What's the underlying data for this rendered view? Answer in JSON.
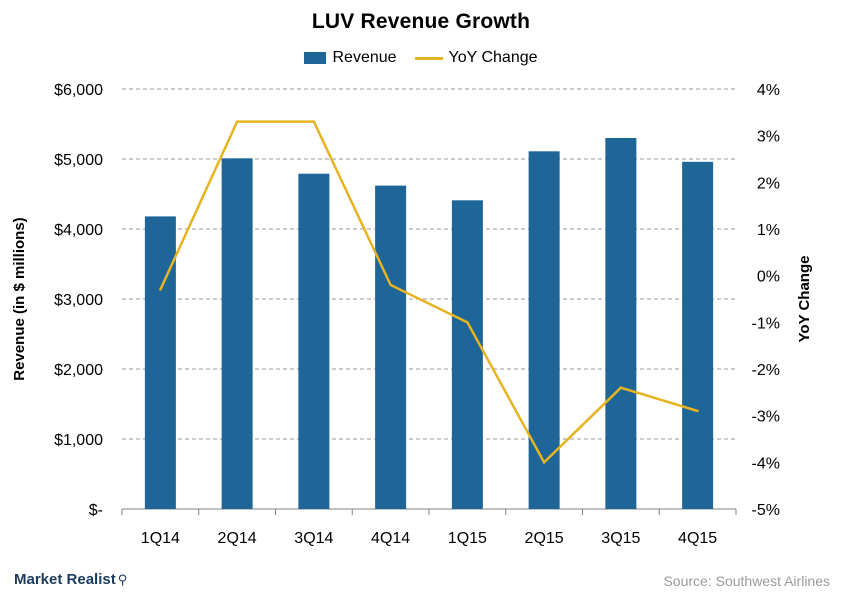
{
  "chart_data": {
    "type": "bar",
    "title": "LUV Revenue Growth",
    "categories": [
      "1Q14",
      "2Q14",
      "3Q14",
      "4Q14",
      "1Q15",
      "2Q15",
      "3Q15",
      "4Q15"
    ],
    "series": [
      {
        "name": "Revenue",
        "type": "bar",
        "axis": "left",
        "color": "#1f6698",
        "values": [
          4180,
          5010,
          4790,
          4620,
          4410,
          5110,
          5300,
          4960
        ]
      },
      {
        "name": "YoY Change",
        "type": "line",
        "axis": "right",
        "color": "#e6b321",
        "values": [
          -0.3,
          3.3,
          3.3,
          -0.2,
          -1.0,
          -4.0,
          -2.4,
          -2.9
        ]
      }
    ],
    "ylabel": "Revenue (in $ millions)",
    "y2label": "YoY Change",
    "ylim": [
      0,
      6000
    ],
    "y2lim": [
      -5,
      4
    ],
    "yticks": [
      "$-",
      "$1,000",
      "$2,000",
      "$3,000",
      "$4,000",
      "$5,000",
      "$6,000"
    ],
    "y2ticks": [
      "-5%",
      "-4%",
      "-3%",
      "-2%",
      "-1%",
      "0%",
      "1%",
      "2%",
      "3%",
      "4%"
    ],
    "grid": true,
    "legend_position": "top-center"
  },
  "footer": {
    "brand": "Market Realist",
    "source": "Source: Southwest Airlines"
  }
}
